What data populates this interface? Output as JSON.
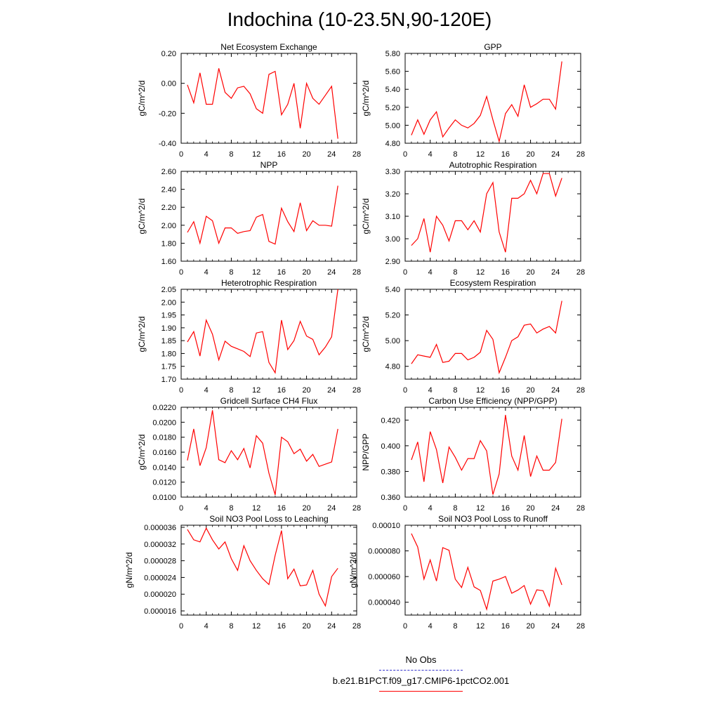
{
  "title": "Indochina (10-23.5N,90-120E)",
  "colors": {
    "series": "#ff0000",
    "obs": "#3333cc",
    "axis": "#000000"
  },
  "legend": {
    "obs_label": "No Obs",
    "model_label": "b.e21.B1PCT.f09_g17.CMIP6-1pctCO2.001"
  },
  "chart_data": [
    {
      "type": "line",
      "title": "Net Ecosystem Exchange",
      "xlabel": "",
      "ylabel": "gC/m^2/d",
      "xlim": [
        0,
        28
      ],
      "xticks": [
        "0",
        "4",
        "8",
        "12",
        "16",
        "20",
        "24",
        "28"
      ],
      "ylim": [
        -0.4,
        0.2
      ],
      "yticks": [
        "-0.40",
        "-0.20",
        "0.00",
        "0.20"
      ],
      "ytick_values": [
        -0.4,
        -0.2,
        0.0,
        0.2
      ],
      "x": [
        1,
        2,
        3,
        4,
        5,
        6,
        7,
        8,
        9,
        10,
        11,
        12,
        13,
        14,
        15,
        16,
        17,
        18,
        19,
        20,
        21,
        22,
        23,
        24,
        25
      ],
      "values": [
        -0.01,
        -0.13,
        0.07,
        -0.14,
        -0.14,
        0.1,
        -0.06,
        -0.1,
        -0.03,
        -0.02,
        -0.07,
        -0.17,
        -0.2,
        0.06,
        0.08,
        -0.21,
        -0.14,
        0.0,
        -0.3,
        0.0,
        -0.1,
        -0.14,
        -0.08,
        -0.02,
        -0.37
      ]
    },
    {
      "type": "line",
      "title": "GPP",
      "xlabel": "",
      "ylabel": "gC/m^2/d",
      "xlim": [
        0,
        28
      ],
      "xticks": [
        "0",
        "4",
        "8",
        "12",
        "16",
        "20",
        "24",
        "28"
      ],
      "ylim": [
        4.8,
        5.8
      ],
      "yticks": [
        "4.80",
        "5.00",
        "5.20",
        "5.40",
        "5.60",
        "5.80"
      ],
      "ytick_values": [
        4.8,
        5.0,
        5.2,
        5.4,
        5.6,
        5.8
      ],
      "x": [
        1,
        2,
        3,
        4,
        5,
        6,
        7,
        8,
        9,
        10,
        11,
        12,
        13,
        14,
        15,
        16,
        17,
        18,
        19,
        20,
        21,
        22,
        23,
        24,
        25
      ],
      "values": [
        4.89,
        5.06,
        4.9,
        5.06,
        5.15,
        4.87,
        4.97,
        5.06,
        5.0,
        4.97,
        5.02,
        5.11,
        5.32,
        5.06,
        4.82,
        5.13,
        5.23,
        5.1,
        5.45,
        5.2,
        5.24,
        5.29,
        5.29,
        5.18,
        5.71
      ]
    },
    {
      "type": "line",
      "title": "NPP",
      "xlabel": "",
      "ylabel": "gC/m^2/d",
      "xlim": [
        0,
        28
      ],
      "xticks": [
        "0",
        "4",
        "8",
        "12",
        "16",
        "20",
        "24",
        "28"
      ],
      "ylim": [
        1.6,
        2.6
      ],
      "yticks": [
        "1.60",
        "1.80",
        "2.00",
        "2.20",
        "2.40",
        "2.60"
      ],
      "ytick_values": [
        1.6,
        1.8,
        2.0,
        2.2,
        2.4,
        2.6
      ],
      "x": [
        1,
        2,
        3,
        4,
        5,
        6,
        7,
        8,
        9,
        10,
        11,
        12,
        13,
        14,
        15,
        16,
        17,
        18,
        19,
        20,
        21,
        22,
        23,
        24,
        25
      ],
      "values": [
        1.92,
        2.04,
        1.8,
        2.1,
        2.05,
        1.8,
        1.97,
        1.97,
        1.91,
        1.93,
        1.94,
        2.09,
        2.12,
        1.82,
        1.79,
        2.19,
        2.04,
        1.93,
        2.25,
        1.94,
        2.05,
        2.0,
        2.0,
        1.99,
        2.44
      ]
    },
    {
      "type": "line",
      "title": "Autotrophic Respiration",
      "xlabel": "",
      "ylabel": "gC/m^2/d",
      "xlim": [
        0,
        28
      ],
      "xticks": [
        "0",
        "4",
        "8",
        "12",
        "16",
        "20",
        "24",
        "28"
      ],
      "ylim": [
        2.9,
        3.3
      ],
      "yticks": [
        "2.90",
        "3.00",
        "3.10",
        "3.20",
        "3.30"
      ],
      "ytick_values": [
        2.9,
        3.0,
        3.1,
        3.2,
        3.3
      ],
      "x": [
        1,
        2,
        3,
        4,
        5,
        6,
        7,
        8,
        9,
        10,
        11,
        12,
        13,
        14,
        15,
        16,
        17,
        18,
        19,
        20,
        21,
        22,
        23,
        24,
        25
      ],
      "values": [
        2.97,
        3.0,
        3.09,
        2.94,
        3.1,
        3.06,
        2.99,
        3.08,
        3.08,
        3.04,
        3.08,
        3.03,
        3.2,
        3.25,
        3.03,
        2.94,
        3.18,
        3.18,
        3.2,
        3.26,
        3.2,
        3.29,
        3.29,
        3.19,
        3.27
      ]
    },
    {
      "type": "line",
      "title": "Heterotrophic Respiration",
      "xlabel": "",
      "ylabel": "gC/m^2/d",
      "xlim": [
        0,
        28
      ],
      "xticks": [
        "0",
        "4",
        "8",
        "12",
        "16",
        "20",
        "24",
        "28"
      ],
      "ylim": [
        1.7,
        2.05
      ],
      "yticks": [
        "1.70",
        "1.75",
        "1.80",
        "1.85",
        "1.90",
        "1.95",
        "2.00",
        "2.05"
      ],
      "ytick_values": [
        1.7,
        1.75,
        1.8,
        1.85,
        1.9,
        1.95,
        2.0,
        2.05
      ],
      "x": [
        1,
        2,
        3,
        4,
        5,
        6,
        7,
        8,
        9,
        10,
        11,
        12,
        13,
        14,
        15,
        16,
        17,
        18,
        19,
        20,
        21,
        22,
        23,
        24,
        25
      ],
      "values": [
        1.845,
        1.885,
        1.79,
        1.93,
        1.875,
        1.775,
        1.848,
        1.828,
        1.818,
        1.808,
        1.788,
        1.88,
        1.885,
        1.765,
        1.725,
        1.93,
        1.815,
        1.85,
        1.925,
        1.868,
        1.855,
        1.795,
        1.825,
        1.865,
        2.05
      ]
    },
    {
      "type": "line",
      "title": "Ecosystem Respiration",
      "xlabel": "",
      "ylabel": "gC/m^2/d",
      "xlim": [
        0,
        28
      ],
      "xticks": [
        "0",
        "4",
        "8",
        "12",
        "16",
        "20",
        "24",
        "28"
      ],
      "ylim": [
        4.7,
        5.4
      ],
      "yticks": [
        "4.80",
        "5.00",
        "5.20",
        "5.40"
      ],
      "ytick_values": [
        4.8,
        5.0,
        5.2,
        5.4
      ],
      "x": [
        1,
        2,
        3,
        4,
        5,
        6,
        7,
        8,
        9,
        10,
        11,
        12,
        13,
        14,
        15,
        16,
        17,
        18,
        19,
        20,
        21,
        22,
        23,
        24,
        25
      ],
      "values": [
        4.82,
        4.89,
        4.88,
        4.87,
        4.97,
        4.83,
        4.84,
        4.9,
        4.9,
        4.85,
        4.87,
        4.91,
        5.08,
        5.01,
        4.75,
        4.87,
        5.0,
        5.03,
        5.12,
        5.13,
        5.06,
        5.09,
        5.11,
        5.06,
        5.31
      ]
    },
    {
      "type": "line",
      "title": "Gridcell Surface CH4 Flux",
      "xlabel": "",
      "ylabel": "gC/m^2/d",
      "xlim": [
        0,
        28
      ],
      "xticks": [
        "0",
        "4",
        "8",
        "12",
        "16",
        "20",
        "24",
        "28"
      ],
      "ylim": [
        0.01,
        0.022
      ],
      "yticks": [
        "0.0100",
        "0.0120",
        "0.0140",
        "0.0160",
        "0.0180",
        "0.0200",
        "0.0220"
      ],
      "ytick_values": [
        0.01,
        0.012,
        0.014,
        0.016,
        0.018,
        0.02,
        0.022
      ],
      "x": [
        1,
        2,
        3,
        4,
        5,
        6,
        7,
        8,
        9,
        10,
        11,
        12,
        13,
        14,
        15,
        16,
        17,
        18,
        19,
        20,
        21,
        22,
        23,
        24,
        25
      ],
      "values": [
        0.0149,
        0.0191,
        0.0142,
        0.0166,
        0.0216,
        0.015,
        0.0146,
        0.0162,
        0.015,
        0.0165,
        0.0139,
        0.0182,
        0.0172,
        0.0132,
        0.0103,
        0.018,
        0.0174,
        0.0158,
        0.0164,
        0.0148,
        0.0157,
        0.0141,
        0.0144,
        0.0147,
        0.0191
      ]
    },
    {
      "type": "line",
      "title": "Carbon Use Efficiency (NPP/GPP)",
      "xlabel": "",
      "ylabel": "NPP/GPP",
      "xlim": [
        0,
        28
      ],
      "xticks": [
        "0",
        "4",
        "8",
        "12",
        "16",
        "20",
        "24",
        "28"
      ],
      "ylim": [
        0.36,
        0.43
      ],
      "yticks": [
        "0.360",
        "0.380",
        "0.400",
        "0.420"
      ],
      "ytick_values": [
        0.36,
        0.38,
        0.4,
        0.42
      ],
      "x": [
        1,
        2,
        3,
        4,
        5,
        6,
        7,
        8,
        9,
        10,
        11,
        12,
        13,
        14,
        15,
        16,
        17,
        18,
        19,
        20,
        21,
        22,
        23,
        24,
        25
      ],
      "values": [
        0.389,
        0.403,
        0.372,
        0.411,
        0.397,
        0.371,
        0.399,
        0.391,
        0.381,
        0.39,
        0.39,
        0.404,
        0.396,
        0.362,
        0.378,
        0.424,
        0.392,
        0.381,
        0.408,
        0.376,
        0.392,
        0.381,
        0.381,
        0.387,
        0.421
      ]
    },
    {
      "type": "line",
      "title": "Soil NO3 Pool Loss to Leaching",
      "xlabel": "",
      "ylabel": "gN/m^2/d",
      "xlim": [
        0,
        28
      ],
      "xticks": [
        "0",
        "4",
        "8",
        "12",
        "16",
        "20",
        "24",
        "28"
      ],
      "ylim": [
        1.5e-05,
        3.65e-05
      ],
      "yticks": [
        "0.000016",
        "0.000020",
        "0.000024",
        "0.000028",
        "0.000032",
        "0.000036"
      ],
      "ytick_values": [
        1.6e-05,
        2e-05,
        2.4e-05,
        2.8e-05,
        3.2e-05,
        3.6e-05
      ],
      "x": [
        1,
        2,
        3,
        4,
        5,
        6,
        7,
        8,
        9,
        10,
        11,
        12,
        13,
        14,
        15,
        16,
        17,
        18,
        19,
        20,
        21,
        22,
        23,
        24,
        25
      ],
      "values": [
        3.55e-05,
        3.3e-05,
        3.25e-05,
        3.58e-05,
        3.3e-05,
        3.08e-05,
        3.25e-05,
        2.85e-05,
        2.57e-05,
        3.16e-05,
        2.8e-05,
        2.57e-05,
        2.37e-05,
        2.23e-05,
        2.93e-05,
        3.52e-05,
        2.37e-05,
        2.6e-05,
        2.2e-05,
        2.22e-05,
        2.57e-05,
        2e-05,
        1.72e-05,
        2.42e-05,
        2.62e-05
      ]
    },
    {
      "type": "line",
      "title": "Soil NO3 Pool Loss to Runoff",
      "xlabel": "",
      "ylabel": "gN/m^2/d",
      "xlim": [
        0,
        28
      ],
      "xticks": [
        "0",
        "4",
        "8",
        "12",
        "16",
        "20",
        "24",
        "28"
      ],
      "ylim": [
        3e-05,
        0.0001
      ],
      "yticks": [
        "0.000040",
        "0.000060",
        "0.000080",
        "0.00010"
      ],
      "ytick_values": [
        4e-05,
        6e-05,
        8e-05,
        0.0001
      ],
      "x": [
        1,
        2,
        3,
        4,
        5,
        6,
        7,
        8,
        9,
        10,
        11,
        12,
        13,
        14,
        15,
        16,
        17,
        18,
        19,
        20,
        21,
        22,
        23,
        24,
        25
      ],
      "values": [
        9.35e-05,
        8.3e-05,
        5.8e-05,
        7.3e-05,
        5.65e-05,
        8.25e-05,
        8.05e-05,
        5.8e-05,
        5.15e-05,
        6.72e-05,
        5.2e-05,
        4.92e-05,
        3.45e-05,
        5.65e-05,
        5.8e-05,
        6e-05,
        4.7e-05,
        4.95e-05,
        5.3e-05,
        3.85e-05,
        4.97e-05,
        4.9e-05,
        3.7e-05,
        6.65e-05,
        5.35e-05
      ]
    }
  ]
}
